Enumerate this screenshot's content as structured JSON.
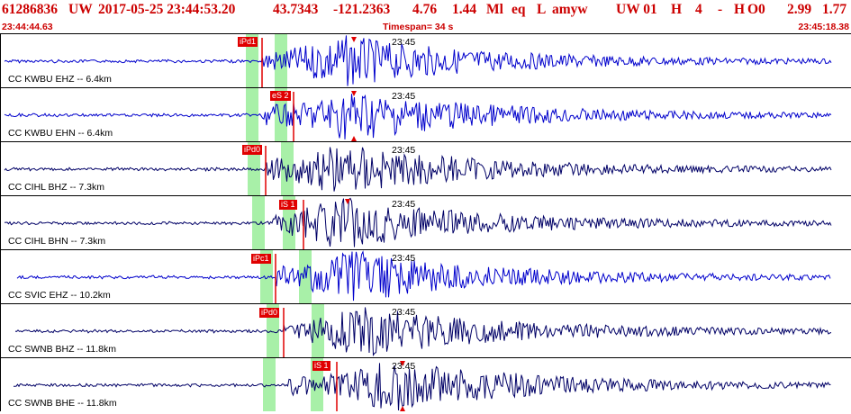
{
  "header": {
    "event_id": "61286836",
    "network": "UW",
    "origin_time": "2017-05-25 23:44:53.20",
    "lat": "43.7343",
    "lon": "-121.2363",
    "depth": "4.76",
    "magnitude": "1.44",
    "mag_type": "Ml",
    "etype": "eq",
    "gtype": "L",
    "author": "amyw",
    "region_tag": "UW 01",
    "quality": "H",
    "nph": "4",
    "dash": "-",
    "hflag": "H",
    "oflag": "O0",
    "val1": "2.99",
    "val2": "1.77"
  },
  "subheader": {
    "start_time": "23:44:44.63",
    "timespan": "Timespan=  34 s",
    "end_time": "23:45:18.38"
  },
  "colors": {
    "header_text": "#cc0000",
    "trace_blue": "#0000cc",
    "trace_navy": "#000066",
    "pick_red": "#e00000",
    "window_green": "#a8f0a8"
  },
  "traces": [
    {
      "label": "CC KWBU EHZ -- 6.4km",
      "minute_mark": "23:45",
      "pick_label": "iPd1",
      "color": "blue"
    },
    {
      "label": "CC KWBU EHN -- 6.4km",
      "minute_mark": "23:45",
      "pick_label": "eS 2",
      "color": "blue"
    },
    {
      "label": "CC CIHL BHZ -- 7.3km",
      "minute_mark": "23:45",
      "pick_label": "iPd0",
      "color": "navy"
    },
    {
      "label": "CC CIHL BHN -- 7.3km",
      "minute_mark": "23:45",
      "pick_label": "iS 1",
      "color": "navy"
    },
    {
      "label": "CC SVIC EHZ -- 10.2km",
      "minute_mark": "23:45",
      "pick_label": "iPc1",
      "color": "blue"
    },
    {
      "label": "CC SWNB BHZ -- 11.8km",
      "minute_mark": "23:45",
      "pick_label": "iPd0",
      "color": "navy"
    },
    {
      "label": "CC SWNB BHE -- 11.8km",
      "minute_mark": "23:45",
      "pick_label": "iS 1",
      "color": "navy"
    }
  ]
}
